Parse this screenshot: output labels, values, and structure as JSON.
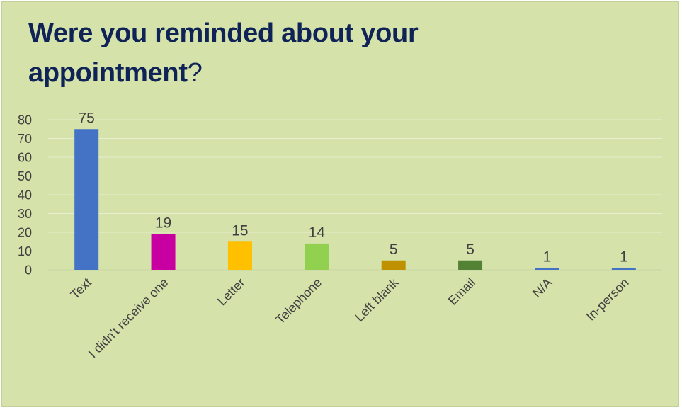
{
  "chart_data": {
    "type": "bar",
    "title": "Were you reminded about your appointment",
    "title_suffix": "?",
    "categories": [
      "Text",
      "I didn't receive one",
      "Letter",
      "Telephone",
      "Left blank",
      "Email",
      "N/A",
      "In-person"
    ],
    "values": [
      75,
      19,
      15,
      14,
      5,
      5,
      1,
      1
    ],
    "bar_colors": [
      "#4472c4",
      "#c800a1",
      "#ffc000",
      "#92d050",
      "#bf9000",
      "#548235",
      "#4472c4",
      "#4472c4"
    ],
    "ylim": [
      0,
      80
    ],
    "yticks": [
      0,
      10,
      20,
      30,
      40,
      50,
      60,
      70,
      80
    ],
    "xlabel": "",
    "ylabel": "",
    "grid": true,
    "legend": "none",
    "data_labels": true
  },
  "colors": {
    "background": "#d5e3ab",
    "title": "#0f2357",
    "gridline": "#e8eecf",
    "axis_text": "#404040"
  }
}
